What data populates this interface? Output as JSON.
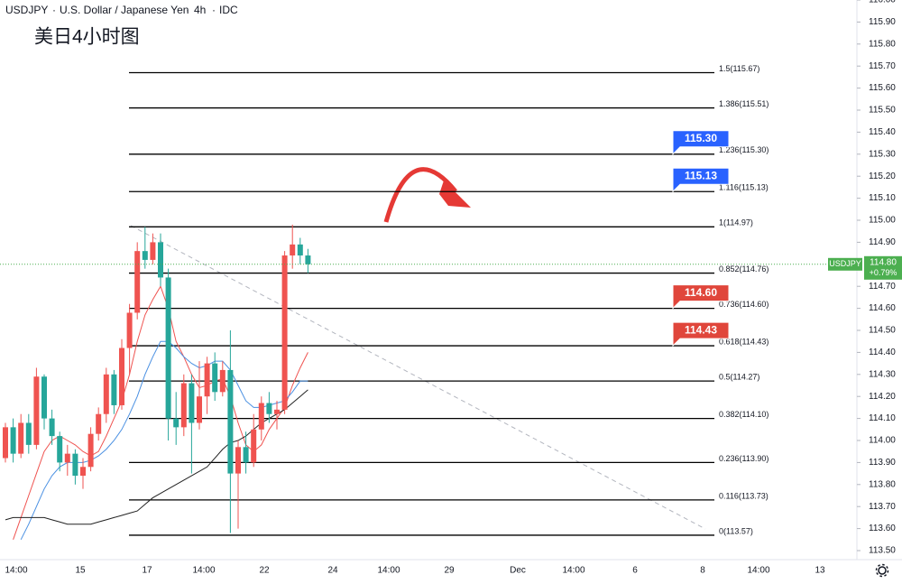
{
  "header": {
    "symbol": "USDJPY",
    "name": "U.S. Dollar / Japanese Yen",
    "interval": "4h",
    "source": "IDC"
  },
  "chart_data": {
    "type": "candlestick",
    "title": "美日4小时图",
    "up_color": "#ef5350",
    "down_color": "#26a69a",
    "ylim": [
      113.5,
      116.0
    ],
    "yticks": [
      {
        "value": 113.5,
        "label": "113.50"
      },
      {
        "value": 113.6,
        "label": "113.60"
      },
      {
        "value": 113.7,
        "label": "113.70"
      },
      {
        "value": 113.8,
        "label": "113.80"
      },
      {
        "value": 113.9,
        "label": "113.90"
      },
      {
        "value": 114.0,
        "label": "114.00"
      },
      {
        "value": 114.1,
        "label": "114.10"
      },
      {
        "value": 114.2,
        "label": "114.20"
      },
      {
        "value": 114.3,
        "label": "114.30"
      },
      {
        "value": 114.4,
        "label": "114.40"
      },
      {
        "value": 114.5,
        "label": "114.50"
      },
      {
        "value": 114.6,
        "label": "114.60"
      },
      {
        "value": 114.7,
        "label": "114.70"
      },
      {
        "value": 114.8,
        "label": "114.80"
      },
      {
        "value": 114.9,
        "label": "114.90"
      },
      {
        "value": 115.0,
        "label": "115.00"
      },
      {
        "value": 115.1,
        "label": "115.10"
      },
      {
        "value": 115.2,
        "label": "115.20"
      },
      {
        "value": 115.3,
        "label": "115.30"
      },
      {
        "value": 115.4,
        "label": "115.40"
      },
      {
        "value": 115.5,
        "label": "115.50"
      },
      {
        "value": 115.6,
        "label": "115.60"
      },
      {
        "value": 115.7,
        "label": "115.70"
      },
      {
        "value": 115.8,
        "label": "115.80"
      },
      {
        "value": 115.9,
        "label": "115.90"
      },
      {
        "value": 116.0,
        "label": "116.00"
      }
    ],
    "xticks": [
      "14:00",
      "15",
      "17",
      "14:00",
      "22",
      "24",
      "14:00",
      "29",
      "Dec",
      "14:00",
      "6",
      "8",
      "14:00",
      "13"
    ],
    "candles": [
      [
        113.92,
        114.08,
        113.9,
        114.06
      ],
      [
        114.06,
        114.1,
        113.9,
        113.94
      ],
      [
        113.94,
        114.12,
        113.92,
        114.08
      ],
      [
        114.08,
        114.12,
        113.94,
        113.98
      ],
      [
        113.98,
        114.33,
        113.96,
        114.29
      ],
      [
        114.29,
        114.3,
        114.05,
        114.1
      ],
      [
        114.1,
        114.14,
        113.98,
        114.02
      ],
      [
        114.02,
        114.04,
        113.86,
        113.9
      ],
      [
        113.9,
        113.98,
        113.84,
        113.94
      ],
      [
        113.94,
        113.96,
        113.8,
        113.84
      ],
      [
        113.84,
        113.92,
        113.78,
        113.88
      ],
      [
        113.88,
        114.06,
        113.86,
        114.03
      ],
      [
        114.03,
        114.15,
        114.0,
        114.12
      ],
      [
        114.12,
        114.33,
        114.08,
        114.3
      ],
      [
        114.3,
        114.32,
        114.12,
        114.16
      ],
      [
        114.16,
        114.46,
        114.14,
        114.42
      ],
      [
        114.42,
        114.62,
        114.3,
        114.58
      ],
      [
        114.58,
        114.9,
        114.55,
        114.86
      ],
      [
        114.86,
        114.97,
        114.78,
        114.82
      ],
      [
        114.82,
        114.94,
        114.8,
        114.9
      ],
      [
        114.9,
        114.94,
        114.7,
        114.74
      ],
      [
        114.74,
        114.78,
        114.0,
        114.1
      ],
      [
        114.1,
        114.22,
        113.98,
        114.06
      ],
      [
        114.06,
        114.3,
        114.02,
        114.26
      ],
      [
        114.26,
        114.3,
        113.85,
        114.08
      ],
      [
        114.08,
        114.36,
        114.05,
        114.2
      ],
      [
        114.2,
        114.38,
        114.12,
        114.35
      ],
      [
        114.35,
        114.4,
        114.18,
        114.22
      ],
      [
        114.22,
        114.36,
        114.2,
        114.32
      ],
      [
        114.32,
        114.5,
        113.58,
        113.85
      ],
      [
        113.85,
        114.0,
        113.6,
        113.97
      ],
      [
        113.97,
        114.04,
        113.85,
        113.9
      ],
      [
        113.9,
        114.12,
        113.88,
        114.05
      ],
      [
        114.05,
        114.2,
        114.0,
        114.17
      ],
      [
        114.17,
        114.22,
        114.08,
        114.12
      ],
      [
        114.12,
        114.18,
        114.05,
        114.14
      ],
      [
        114.14,
        114.86,
        114.12,
        114.84
      ],
      [
        114.84,
        114.98,
        114.78,
        114.89
      ],
      [
        114.89,
        114.92,
        114.8,
        114.84
      ],
      [
        114.84,
        114.87,
        114.76,
        114.8
      ]
    ],
    "series": [
      {
        "color": "#ef5350",
        "values": [
          null,
          113.55,
          113.65,
          113.75,
          113.85,
          113.95,
          114.0,
          114.02,
          114.0,
          113.98,
          113.95,
          113.93,
          113.95,
          114.02,
          114.1,
          114.18,
          114.3,
          114.45,
          114.57,
          114.64,
          114.7,
          114.6,
          114.45,
          114.38,
          114.3,
          114.24,
          114.25,
          114.27,
          114.28,
          114.2,
          114.08,
          113.98,
          113.95,
          113.98,
          114.05,
          114.1,
          114.15,
          114.25,
          114.33,
          114.4
        ]
      },
      {
        "color": "#4a90e2",
        "values": [
          null,
          null,
          113.55,
          113.62,
          113.7,
          113.78,
          113.84,
          113.88,
          113.9,
          113.9,
          113.9,
          113.91,
          113.93,
          113.96,
          114.0,
          114.05,
          114.12,
          114.2,
          114.3,
          114.38,
          114.45,
          114.45,
          114.42,
          114.38,
          114.35,
          114.33,
          114.34,
          114.36,
          114.36,
          114.32,
          114.25,
          114.18,
          114.15,
          114.15,
          114.16,
          114.17,
          114.18,
          114.22,
          114.27,
          114.27
        ]
      },
      {
        "color": "#222222",
        "values": [
          113.64,
          113.65,
          113.65,
          113.65,
          113.65,
          113.65,
          113.64,
          113.63,
          113.62,
          113.62,
          113.62,
          113.62,
          113.63,
          113.64,
          113.65,
          113.66,
          113.67,
          113.68,
          113.71,
          113.74,
          113.76,
          113.78,
          113.8,
          113.82,
          113.84,
          113.86,
          113.88,
          113.92,
          113.96,
          113.99,
          114.0,
          114.02,
          114.05,
          114.08,
          114.1,
          114.12,
          114.14,
          114.17,
          114.2,
          114.23
        ]
      }
    ],
    "fib_levels": [
      {
        "value": 115.67,
        "label": "1.5(115.67)"
      },
      {
        "value": 115.51,
        "label": "1.386(115.51)"
      },
      {
        "value": 115.3,
        "label": "1.236(115.30)"
      },
      {
        "value": 115.13,
        "label": "1.116(115.13)"
      },
      {
        "value": 114.97,
        "label": "1(114.97)"
      },
      {
        "value": 114.76,
        "label": "0.852(114.76)"
      },
      {
        "value": 114.6,
        "label": "0.736(114.60)"
      },
      {
        "value": 114.43,
        "label": "0.618(114.43)"
      },
      {
        "value": 114.27,
        "label": "0.5(114.27)"
      },
      {
        "value": 114.1,
        "label": "0.382(114.10)"
      },
      {
        "value": 113.9,
        "label": "0.236(113.90)"
      },
      {
        "value": 113.73,
        "label": "0.116(113.73)"
      },
      {
        "value": 113.57,
        "label": "0(113.57)"
      }
    ],
    "callouts": [
      {
        "value": 115.3,
        "label": "115.30",
        "color": "#2962ff"
      },
      {
        "value": 115.13,
        "label": "115.13",
        "color": "#2962ff"
      },
      {
        "value": 114.6,
        "label": "114.60",
        "color": "#e0463b"
      },
      {
        "value": 114.43,
        "label": "114.43",
        "color": "#e0463b"
      }
    ],
    "last_price": {
      "value": 114.8,
      "label": "114.80",
      "change": "+0.79%",
      "color": "#4caf50"
    }
  }
}
